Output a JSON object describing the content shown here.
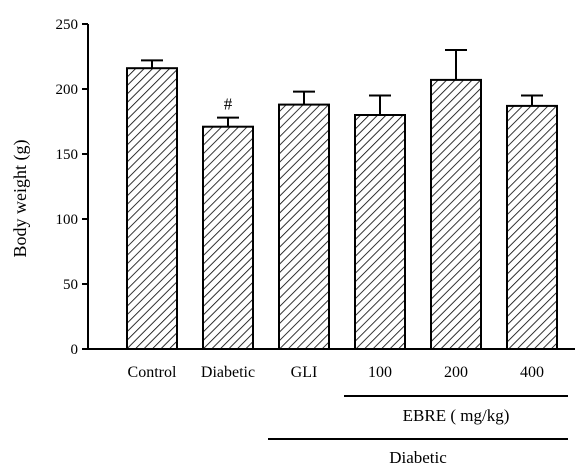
{
  "chart_data": {
    "type": "bar",
    "title": "",
    "xlabel": "",
    "ylabel": "Body weight (g)",
    "ylim": [
      0,
      250
    ],
    "yticks": [
      0,
      50,
      100,
      150,
      200,
      250
    ],
    "grid": false,
    "categories": [
      "Control",
      "Diabetic",
      "GLI",
      "100",
      "200",
      "400"
    ],
    "values": [
      216,
      171,
      188,
      180,
      207,
      187
    ],
    "errors": [
      6,
      7,
      10,
      15,
      23,
      8
    ],
    "annotations": [
      {
        "category": "Diabetic",
        "text": "#"
      }
    ],
    "groups": [
      {
        "label": "EBRE ( mg/kg)",
        "categories": [
          "100",
          "200",
          "400"
        ]
      },
      {
        "label": "Diabetic",
        "categories": [
          "GLI",
          "100",
          "200",
          "400"
        ]
      }
    ],
    "bar_fill": "diagonal-hatch",
    "bar_color": "#000000"
  }
}
